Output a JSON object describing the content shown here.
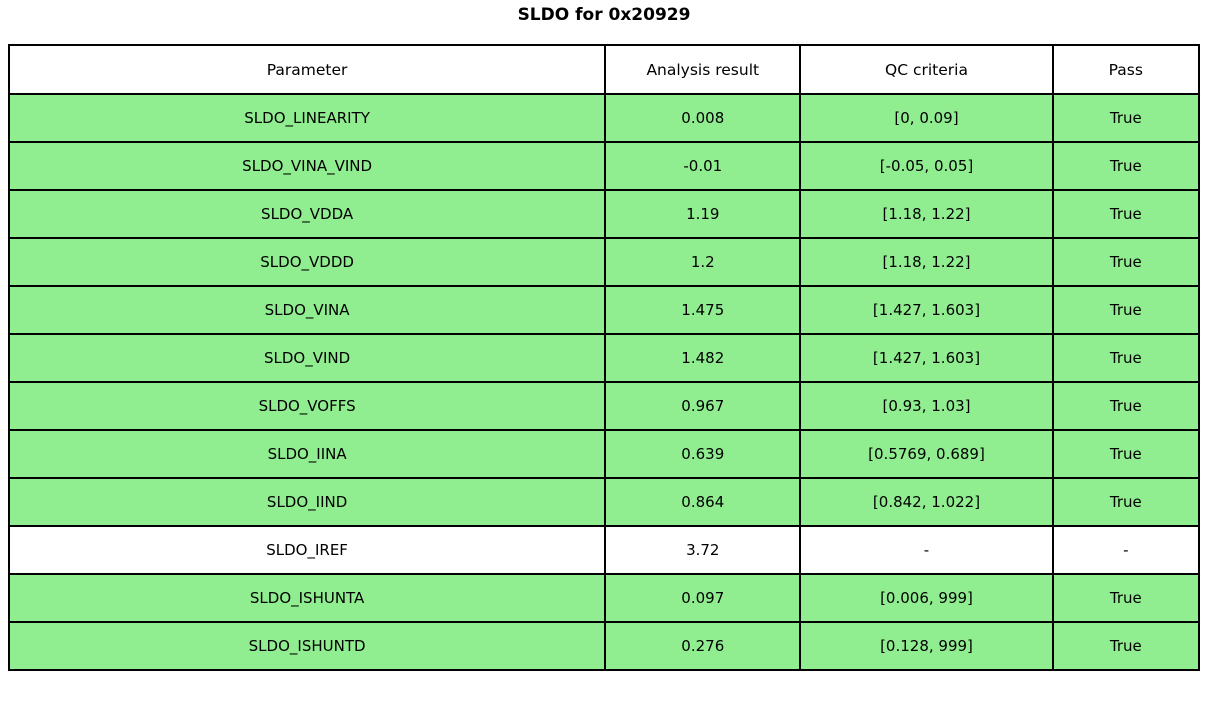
{
  "title": "SLDO for 0x20929",
  "table": {
    "headers": [
      "Parameter",
      "Analysis result",
      "QC criteria",
      "Pass"
    ],
    "rows": [
      {
        "parameter": "SLDO_LINEARITY",
        "result": "0.008",
        "criteria": "[0, 0.09]",
        "pass": "True",
        "highlight": true
      },
      {
        "parameter": "SLDO_VINA_VIND",
        "result": "-0.01",
        "criteria": "[-0.05, 0.05]",
        "pass": "True",
        "highlight": true
      },
      {
        "parameter": "SLDO_VDDA",
        "result": "1.19",
        "criteria": "[1.18, 1.22]",
        "pass": "True",
        "highlight": true
      },
      {
        "parameter": "SLDO_VDDD",
        "result": "1.2",
        "criteria": "[1.18, 1.22]",
        "pass": "True",
        "highlight": true
      },
      {
        "parameter": "SLDO_VINA",
        "result": "1.475",
        "criteria": "[1.427, 1.603]",
        "pass": "True",
        "highlight": true
      },
      {
        "parameter": "SLDO_VIND",
        "result": "1.482",
        "criteria": "[1.427, 1.603]",
        "pass": "True",
        "highlight": true
      },
      {
        "parameter": "SLDO_VOFFS",
        "result": "0.967",
        "criteria": "[0.93, 1.03]",
        "pass": "True",
        "highlight": true
      },
      {
        "parameter": "SLDO_IINA",
        "result": "0.639",
        "criteria": "[0.5769, 0.689]",
        "pass": "True",
        "highlight": true
      },
      {
        "parameter": "SLDO_IIND",
        "result": "0.864",
        "criteria": "[0.842, 1.022]",
        "pass": "True",
        "highlight": true
      },
      {
        "parameter": "SLDO_IREF",
        "result": "3.72",
        "criteria": "-",
        "pass": "-",
        "highlight": false
      },
      {
        "parameter": "SLDO_ISHUNTA",
        "result": "0.097",
        "criteria": "[0.006, 999]",
        "pass": "True",
        "highlight": true
      },
      {
        "parameter": "SLDO_ISHUNTD",
        "result": "0.276",
        "criteria": "[0.128, 999]",
        "pass": "True",
        "highlight": true
      }
    ],
    "column_width_percents": [
      50.1,
      16.4,
      21.2,
      12.3
    ]
  },
  "colors": {
    "pass_green": "#90EE90",
    "no_qc_white": "#FFFFFF",
    "border": "#000000",
    "text": "#000000"
  },
  "chart_data": {
    "type": "table",
    "title": "SLDO for 0x20929",
    "columns": [
      "Parameter",
      "Analysis result",
      "QC criteria",
      "Pass"
    ],
    "rows": [
      [
        "SLDO_LINEARITY",
        "0.008",
        "[0, 0.09]",
        "True"
      ],
      [
        "SLDO_VINA_VIND",
        "-0.01",
        "[-0.05, 0.05]",
        "True"
      ],
      [
        "SLDO_VDDA",
        "1.19",
        "[1.18, 1.22]",
        "True"
      ],
      [
        "SLDO_VDDD",
        "1.2",
        "[1.18, 1.22]",
        "True"
      ],
      [
        "SLDO_VINA",
        "1.475",
        "[1.427, 1.603]",
        "True"
      ],
      [
        "SLDO_VIND",
        "1.482",
        "[1.427, 1.603]",
        "True"
      ],
      [
        "SLDO_VOFFS",
        "0.967",
        "[0.93, 1.03]",
        "True"
      ],
      [
        "SLDO_IINA",
        "0.639",
        "[0.5769, 0.689]",
        "True"
      ],
      [
        "SLDO_IIND",
        "0.864",
        "[0.842, 1.022]",
        "True"
      ],
      [
        "SLDO_IREF",
        "3.72",
        "-",
        "-"
      ],
      [
        "SLDO_ISHUNTA",
        "0.097",
        "[0.006, 999]",
        "True"
      ],
      [
        "SLDO_ISHUNTD",
        "0.276",
        "[0.128, 999]",
        "True"
      ]
    ],
    "row_highlight": [
      true,
      true,
      true,
      true,
      true,
      true,
      true,
      true,
      true,
      false,
      true,
      true
    ],
    "legend": "green row = QC passed, white row = no QC criteria"
  }
}
